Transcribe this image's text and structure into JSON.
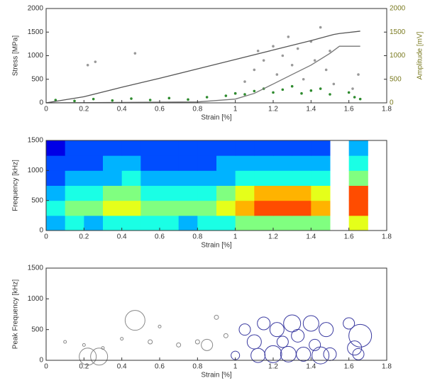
{
  "chart_data": [
    {
      "type": "combo",
      "xlabel": "Strain [%]",
      "ylabel": "Stress [MPa]",
      "y2label": "Amplitude [mV]",
      "xlim": [
        0,
        1.8
      ],
      "xticks": [
        0,
        0.2,
        0.4,
        0.6,
        0.8,
        1,
        1.2,
        1.4,
        1.6,
        1.8
      ],
      "ylim": [
        0,
        2000
      ],
      "yticks": [
        0,
        500,
        1000,
        1500,
        2000
      ],
      "y2lim": [
        0,
        2000
      ],
      "y2ticks": [
        0,
        500,
        1000,
        1500,
        2000
      ],
      "y2color": "#7a7a20",
      "series": [
        {
          "type": "scatter",
          "axis": "y2",
          "color": "#999999",
          "x": [
            0.22,
            0.26,
            0.47,
            1.0,
            1.05,
            1.1,
            1.12,
            1.15,
            1.2,
            1.22,
            1.25,
            1.28,
            1.3,
            1.33,
            1.36,
            1.4,
            1.42,
            1.45,
            1.48,
            1.5,
            1.52,
            1.62,
            1.65
          ],
          "values": [
            800,
            870,
            1050,
            200,
            450,
            700,
            1100,
            900,
            1200,
            600,
            1000,
            1400,
            800,
            1150,
            500,
            1300,
            900,
            1600,
            700,
            1100,
            400,
            300,
            600
          ]
        },
        {
          "type": "scatter",
          "axis": "y2",
          "color": "#2e8b2e",
          "x": [
            0.05,
            0.15,
            0.25,
            0.35,
            0.45,
            0.55,
            0.65,
            0.75,
            0.85,
            0.95,
            1.0,
            1.05,
            1.1,
            1.15,
            1.2,
            1.25,
            1.3,
            1.35,
            1.4,
            1.45,
            1.5,
            1.6,
            1.63,
            1.66
          ],
          "values": [
            60,
            40,
            80,
            50,
            90,
            60,
            100,
            70,
            120,
            150,
            200,
            180,
            250,
            300,
            220,
            280,
            350,
            200,
            260,
            300,
            180,
            220,
            120,
            80
          ]
        },
        {
          "type": "line",
          "color": "#555555",
          "x": [
            0,
            0.2,
            0.4,
            0.6,
            0.8,
            1.0,
            1.2,
            1.4,
            1.52,
            1.55,
            1.66
          ],
          "values": [
            0,
            130,
            330,
            520,
            720,
            920,
            1120,
            1320,
            1450,
            1470,
            1520
          ]
        },
        {
          "type": "line",
          "axis": "y2",
          "color": "#777777",
          "x": [
            0,
            0.8,
            1.0,
            1.1,
            1.2,
            1.3,
            1.4,
            1.5,
            1.55,
            1.66
          ],
          "values": [
            0,
            20,
            80,
            200,
            400,
            600,
            800,
            1050,
            1200,
            1200
          ]
        }
      ]
    },
    {
      "type": "heatmap",
      "xlabel": "Strain [%]",
      "ylabel": "Frequency [kHz]",
      "colormap": "jet",
      "xlim": [
        0,
        1.8
      ],
      "xticks": [
        0,
        0.2,
        0.4,
        0.6,
        0.8,
        1,
        1.2,
        1.4,
        1.6,
        1.8
      ],
      "ylim": [
        0,
        1500
      ],
      "yticks": [
        0,
        500,
        1000,
        1500
      ],
      "zlim": [
        0,
        10
      ],
      "x": [
        0.05,
        0.15,
        0.25,
        0.35,
        0.45,
        0.55,
        0.65,
        0.75,
        0.85,
        0.95,
        1.05,
        1.15,
        1.25,
        1.35,
        1.45,
        1.55,
        1.65
      ],
      "y": [
        125,
        375,
        625,
        875,
        1125,
        1375
      ],
      "values": [
        [
          3,
          4,
          3,
          4,
          4,
          4,
          4,
          3,
          4,
          4,
          5,
          5,
          5,
          5,
          5,
          null,
          6
        ],
        [
          4,
          5,
          5,
          6,
          6,
          5,
          5,
          5,
          5,
          6,
          7,
          8,
          8,
          8,
          7,
          null,
          8
        ],
        [
          3,
          4,
          4,
          5,
          5,
          4,
          4,
          4,
          4,
          5,
          6,
          7,
          7,
          7,
          6,
          null,
          8
        ],
        [
          2,
          3,
          3,
          3,
          4,
          3,
          3,
          3,
          3,
          3,
          4,
          4,
          4,
          4,
          4,
          null,
          5
        ],
        [
          2,
          2,
          2,
          3,
          3,
          2,
          2,
          2,
          2,
          3,
          3,
          3,
          3,
          3,
          3,
          null,
          4
        ],
        [
          1,
          2,
          2,
          2,
          2,
          2,
          2,
          2,
          2,
          2,
          2,
          2,
          2,
          2,
          2,
          null,
          3
        ]
      ]
    },
    {
      "type": "bubble",
      "xlabel": "Strain [%]",
      "ylabel": "Peak Frequency [kHz]",
      "xlim": [
        0,
        1.8
      ],
      "xticks": [
        0,
        0.2,
        0.4,
        0.6,
        0.8,
        1,
        1.2,
        1.4,
        1.6,
        1.8
      ],
      "ylim": [
        0,
        1500
      ],
      "yticks": [
        0,
        500,
        1000,
        1500
      ],
      "series": [
        {
          "color": "#888888",
          "x": [
            0.22,
            0.28,
            0.47,
            0.1,
            0.2,
            0.3,
            0.4,
            0.55,
            0.6,
            0.7,
            0.8,
            0.85,
            0.9,
            0.95
          ],
          "values": [
            60,
            60,
            650,
            300,
            250,
            200,
            350,
            300,
            550,
            250,
            300,
            250,
            700,
            400
          ],
          "sizes": [
            12,
            12,
            14,
            2,
            2,
            2,
            2,
            3,
            2,
            3,
            3,
            8,
            3,
            3
          ]
        },
        {
          "color": "#3a3aa0",
          "x": [
            1.0,
            1.05,
            1.1,
            1.12,
            1.15,
            1.2,
            1.22,
            1.25,
            1.28,
            1.3,
            1.33,
            1.36,
            1.4,
            1.42,
            1.45,
            1.48,
            1.5,
            1.6,
            1.63,
            1.66,
            1.65
          ],
          "values": [
            80,
            500,
            300,
            80,
            600,
            100,
            500,
            300,
            100,
            600,
            400,
            100,
            600,
            250,
            80,
            500,
            100,
            600,
            200,
            400,
            100
          ],
          "sizes": [
            6,
            8,
            10,
            10,
            9,
            12,
            10,
            8,
            11,
            12,
            9,
            10,
            11,
            8,
            12,
            10,
            9,
            8,
            10,
            16,
            8
          ]
        }
      ]
    }
  ]
}
